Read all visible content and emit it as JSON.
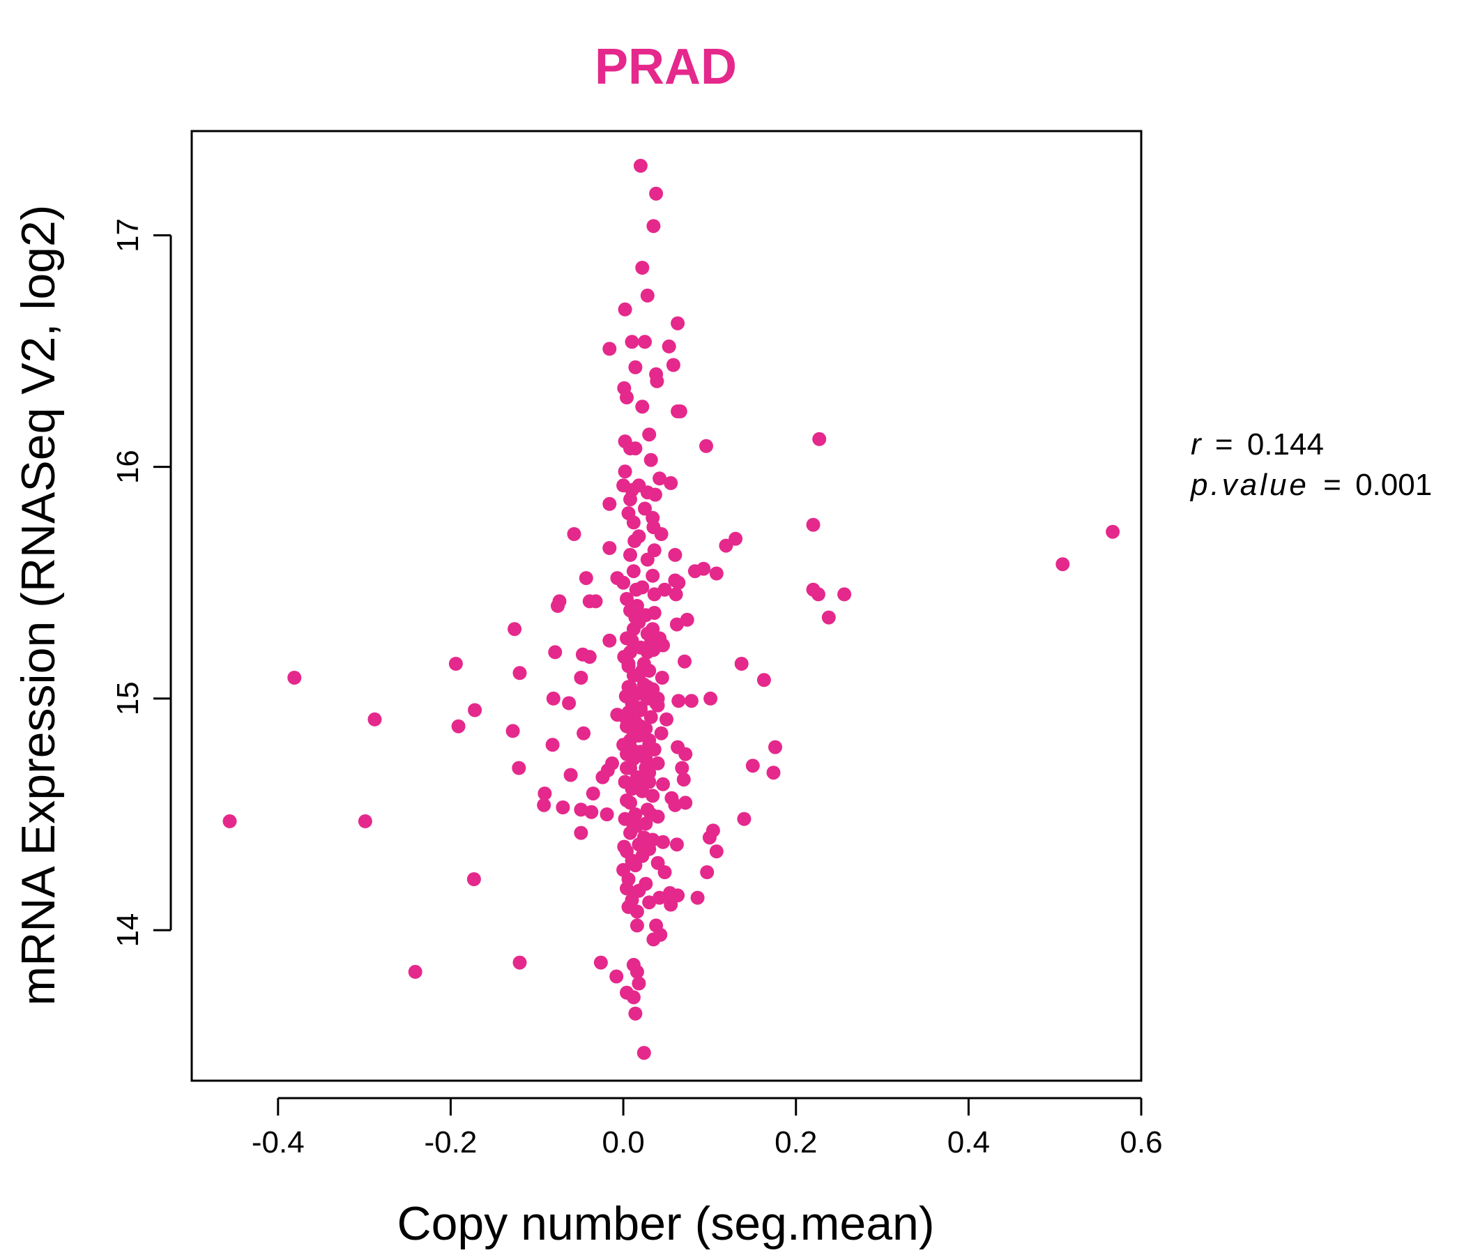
{
  "chart_data": {
    "type": "scatter",
    "title": "PRAD",
    "xlabel": "Copy number (seg.mean)",
    "ylabel": "mRNA Expression (RNASeq V2, log2)",
    "xlim": [
      -0.5,
      0.6
    ],
    "ylim": [
      13.35,
      17.45
    ],
    "x_ticks": [
      -0.4,
      -0.2,
      0.0,
      0.2,
      0.4,
      0.6
    ],
    "x_tick_labels": [
      "-0.4",
      "-0.2",
      "0.0",
      "0.2",
      "0.4",
      "0.6"
    ],
    "y_ticks": [
      14,
      15,
      16,
      17
    ],
    "y_tick_labels": [
      "14",
      "15",
      "16",
      "17"
    ],
    "grid": false,
    "legend": "none",
    "color": "#e5288c",
    "stats": {
      "r_label": "r",
      "r_value": "0.144",
      "p_label": "p.value",
      "p_value": "0.001",
      "equals": "="
    },
    "points": [
      [
        0.02,
        17.3
      ],
      [
        0.038,
        17.18
      ],
      [
        0.035,
        17.04
      ],
      [
        0.022,
        16.86
      ],
      [
        0.028,
        16.74
      ],
      [
        0.002,
        16.68
      ],
      [
        0.063,
        16.62
      ],
      [
        0.01,
        16.54
      ],
      [
        0.025,
        16.54
      ],
      [
        0.053,
        16.52
      ],
      [
        -0.016,
        16.51
      ],
      [
        0.058,
        16.44
      ],
      [
        0.014,
        16.43
      ],
      [
        0.039,
        16.37
      ],
      [
        0.038,
        16.4
      ],
      [
        0.001,
        16.34
      ],
      [
        0.004,
        16.3
      ],
      [
        0.022,
        16.26
      ],
      [
        0.066,
        16.24
      ],
      [
        0.063,
        16.24
      ],
      [
        0.03,
        16.14
      ],
      [
        0.002,
        16.11
      ],
      [
        0.008,
        16.08
      ],
      [
        0.014,
        16.08
      ],
      [
        0.096,
        16.09
      ],
      [
        0.227,
        16.12
      ],
      [
        0.032,
        16.03
      ],
      [
        0.002,
        15.98
      ],
      [
        0.042,
        15.95
      ],
      [
        0.055,
        15.93
      ],
      [
        0.0,
        15.92
      ],
      [
        0.018,
        15.92
      ],
      [
        0.01,
        15.9
      ],
      [
        0.028,
        15.89
      ],
      [
        0.037,
        15.88
      ],
      [
        0.008,
        15.86
      ],
      [
        -0.016,
        15.84
      ],
      [
        0.025,
        15.82
      ],
      [
        0.006,
        15.8
      ],
      [
        0.034,
        15.78
      ],
      [
        0.012,
        15.76
      ],
      [
        0.22,
        15.75
      ],
      [
        0.035,
        15.74
      ],
      [
        -0.057,
        15.71
      ],
      [
        0.044,
        15.71
      ],
      [
        0.018,
        15.7
      ],
      [
        0.013,
        15.68
      ],
      [
        0.13,
        15.69
      ],
      [
        0.119,
        15.66
      ],
      [
        -0.016,
        15.65
      ],
      [
        0.036,
        15.64
      ],
      [
        0.008,
        15.62
      ],
      [
        0.06,
        15.62
      ],
      [
        0.028,
        15.6
      ],
      [
        0.093,
        15.56
      ],
      [
        0.083,
        15.55
      ],
      [
        0.108,
        15.54
      ],
      [
        -0.043,
        15.52
      ],
      [
        -0.007,
        15.52
      ],
      [
        0.034,
        15.53
      ],
      [
        0.06,
        15.51
      ],
      [
        0.064,
        15.5
      ],
      [
        0.0,
        15.5
      ],
      [
        0.022,
        15.48
      ],
      [
        0.015,
        15.47
      ],
      [
        0.048,
        15.47
      ],
      [
        0.22,
        15.47
      ],
      [
        0.226,
        15.45
      ],
      [
        0.256,
        15.45
      ],
      [
        0.061,
        15.45
      ],
      [
        0.004,
        15.43
      ],
      [
        -0.032,
        15.42
      ],
      [
        -0.074,
        15.42
      ],
      [
        -0.039,
        15.42
      ],
      [
        -0.076,
        15.4
      ],
      [
        0.008,
        15.38
      ],
      [
        0.026,
        15.36
      ],
      [
        0.036,
        15.37
      ],
      [
        0.074,
        15.34
      ],
      [
        0.238,
        15.35
      ],
      [
        0.018,
        15.33
      ],
      [
        0.062,
        15.32
      ],
      [
        0.012,
        15.3
      ],
      [
        -0.126,
        15.3
      ],
      [
        0.028,
        15.28
      ],
      [
        0.004,
        15.26
      ],
      [
        0.042,
        15.26
      ],
      [
        0.032,
        15.24
      ],
      [
        0.046,
        15.23
      ],
      [
        -0.016,
        15.25
      ],
      [
        0.02,
        15.22
      ],
      [
        0.008,
        15.2
      ],
      [
        0.035,
        15.21
      ],
      [
        -0.079,
        15.2
      ],
      [
        -0.047,
        15.19
      ],
      [
        -0.039,
        15.18
      ],
      [
        0.001,
        15.18
      ],
      [
        0.071,
        15.16
      ],
      [
        0.137,
        15.15
      ],
      [
        -0.194,
        15.15
      ],
      [
        0.006,
        15.14
      ],
      [
        0.022,
        15.12
      ],
      [
        0.03,
        15.12
      ],
      [
        -0.12,
        15.11
      ],
      [
        0.012,
        15.1
      ],
      [
        0.045,
        15.09
      ],
      [
        -0.381,
        15.09
      ],
      [
        0.163,
        15.08
      ],
      [
        -0.049,
        15.09
      ],
      [
        0.024,
        15.06
      ],
      [
        0.008,
        15.05
      ],
      [
        0.034,
        15.04
      ],
      [
        0.016,
        15.02
      ],
      [
        0.003,
        15.01
      ],
      [
        0.028,
        15.0
      ],
      [
        0.101,
        15.0
      ],
      [
        0.064,
        14.99
      ],
      [
        0.079,
        14.99
      ],
      [
        -0.081,
        15.0
      ],
      [
        -0.063,
        14.98
      ],
      [
        0.01,
        14.98
      ],
      [
        0.04,
        14.97
      ],
      [
        0.02,
        14.96
      ],
      [
        -0.172,
        14.95
      ],
      [
        0.006,
        14.94
      ],
      [
        -0.288,
        14.91
      ],
      [
        0.032,
        14.92
      ],
      [
        0.05,
        14.91
      ],
      [
        0.014,
        14.9
      ],
      [
        -0.007,
        14.93
      ],
      [
        0.004,
        14.88
      ],
      [
        -0.191,
        14.88
      ],
      [
        0.026,
        14.87
      ],
      [
        -0.128,
        14.86
      ],
      [
        -0.046,
        14.85
      ],
      [
        0.044,
        14.85
      ],
      [
        0.018,
        14.84
      ],
      [
        0.008,
        14.82
      ],
      [
        0.03,
        14.82
      ],
      [
        0.0,
        14.8
      ],
      [
        -0.082,
        14.8
      ],
      [
        0.063,
        14.79
      ],
      [
        0.176,
        14.79
      ],
      [
        0.036,
        14.78
      ],
      [
        0.02,
        14.77
      ],
      [
        0.072,
        14.76
      ],
      [
        0.004,
        14.76
      ],
      [
        0.012,
        14.74
      ],
      [
        0.026,
        14.74
      ],
      [
        0.15,
        14.71
      ],
      [
        -0.013,
        14.72
      ],
      [
        0.04,
        14.72
      ],
      [
        0.068,
        14.7
      ],
      [
        0.008,
        14.7
      ],
      [
        -0.018,
        14.69
      ],
      [
        0.174,
        14.68
      ],
      [
        -0.061,
        14.67
      ],
      [
        -0.121,
        14.7
      ],
      [
        0.03,
        14.68
      ],
      [
        -0.024,
        14.66
      ],
      [
        0.016,
        14.66
      ],
      [
        0.07,
        14.65
      ],
      [
        0.002,
        14.64
      ],
      [
        0.046,
        14.63
      ],
      [
        0.022,
        14.62
      ],
      [
        0.01,
        14.61
      ],
      [
        -0.035,
        14.59
      ],
      [
        -0.091,
        14.59
      ],
      [
        0.034,
        14.58
      ],
      [
        0.056,
        14.57
      ],
      [
        0.004,
        14.56
      ],
      [
        0.072,
        14.55
      ],
      [
        0.06,
        14.54
      ],
      [
        -0.092,
        14.54
      ],
      [
        -0.07,
        14.53
      ],
      [
        0.028,
        14.52
      ],
      [
        -0.049,
        14.52
      ],
      [
        -0.037,
        14.51
      ],
      [
        -0.019,
        14.5
      ],
      [
        0.014,
        14.5
      ],
      [
        0.04,
        14.49
      ],
      [
        0.14,
        14.48
      ],
      [
        0.002,
        14.48
      ],
      [
        -0.456,
        14.47
      ],
      [
        -0.299,
        14.47
      ],
      [
        0.026,
        14.46
      ],
      [
        0.012,
        14.45
      ],
      [
        0.104,
        14.43
      ],
      [
        0.008,
        14.42
      ],
      [
        -0.049,
        14.42
      ],
      [
        0.1,
        14.4
      ],
      [
        0.034,
        14.39
      ],
      [
        0.046,
        14.38
      ],
      [
        0.062,
        14.37
      ],
      [
        0.018,
        14.37
      ],
      [
        0.001,
        14.36
      ],
      [
        0.03,
        14.35
      ],
      [
        0.108,
        14.34
      ],
      [
        0.004,
        14.34
      ],
      [
        0.022,
        14.32
      ],
      [
        0.01,
        14.3
      ],
      [
        0.04,
        14.29
      ],
      [
        0.014,
        14.28
      ],
      [
        0.0,
        14.26
      ],
      [
        0.048,
        14.25
      ],
      [
        0.097,
        14.25
      ],
      [
        -0.173,
        14.22
      ],
      [
        0.006,
        14.22
      ],
      [
        0.026,
        14.2
      ],
      [
        0.004,
        14.18
      ],
      [
        0.018,
        14.17
      ],
      [
        0.054,
        14.16
      ],
      [
        0.063,
        14.15
      ],
      [
        0.042,
        14.14
      ],
      [
        0.086,
        14.14
      ],
      [
        0.01,
        14.13
      ],
      [
        0.03,
        14.12
      ],
      [
        0.055,
        14.11
      ],
      [
        0.006,
        14.1
      ],
      [
        0.016,
        14.08
      ],
      [
        0.038,
        14.02
      ],
      [
        0.016,
        14.02
      ],
      [
        0.043,
        13.98
      ],
      [
        0.035,
        13.96
      ],
      [
        -0.12,
        13.86
      ],
      [
        -0.026,
        13.86
      ],
      [
        0.012,
        13.85
      ],
      [
        -0.241,
        13.82
      ],
      [
        0.016,
        13.82
      ],
      [
        -0.008,
        13.8
      ],
      [
        0.018,
        13.77
      ],
      [
        0.004,
        13.73
      ],
      [
        0.012,
        13.71
      ],
      [
        0.014,
        13.64
      ],
      [
        0.024,
        13.47
      ],
      [
        0.509,
        15.58
      ],
      [
        0.567,
        15.72
      ],
      [
        0.028,
        15.05
      ],
      [
        0.012,
        14.85
      ],
      [
        0.02,
        14.95
      ],
      [
        0.006,
        15.15
      ],
      [
        0.026,
        14.7
      ],
      [
        0.016,
        15.4
      ],
      [
        0.034,
        15.3
      ],
      [
        0.002,
        14.92
      ],
      [
        0.04,
        15.0
      ],
      [
        0.022,
        14.6
      ],
      [
        0.01,
        15.25
      ],
      [
        0.03,
        14.8
      ],
      [
        0.018,
        15.1
      ],
      [
        0.008,
        14.55
      ],
      [
        0.036,
        15.45
      ],
      [
        0.024,
        14.4
      ],
      [
        0.014,
        15.35
      ],
      [
        0.004,
        14.7
      ],
      [
        0.028,
        15.2
      ],
      [
        0.032,
        14.5
      ],
      [
        0.012,
        15.55
      ],
      [
        0.02,
        14.88
      ],
      [
        0.038,
        14.98
      ],
      [
        0.016,
        14.45
      ],
      [
        0.006,
        15.05
      ],
      [
        0.024,
        15.15
      ],
      [
        0.03,
        14.64
      ],
      [
        0.01,
        14.78
      ]
    ]
  }
}
